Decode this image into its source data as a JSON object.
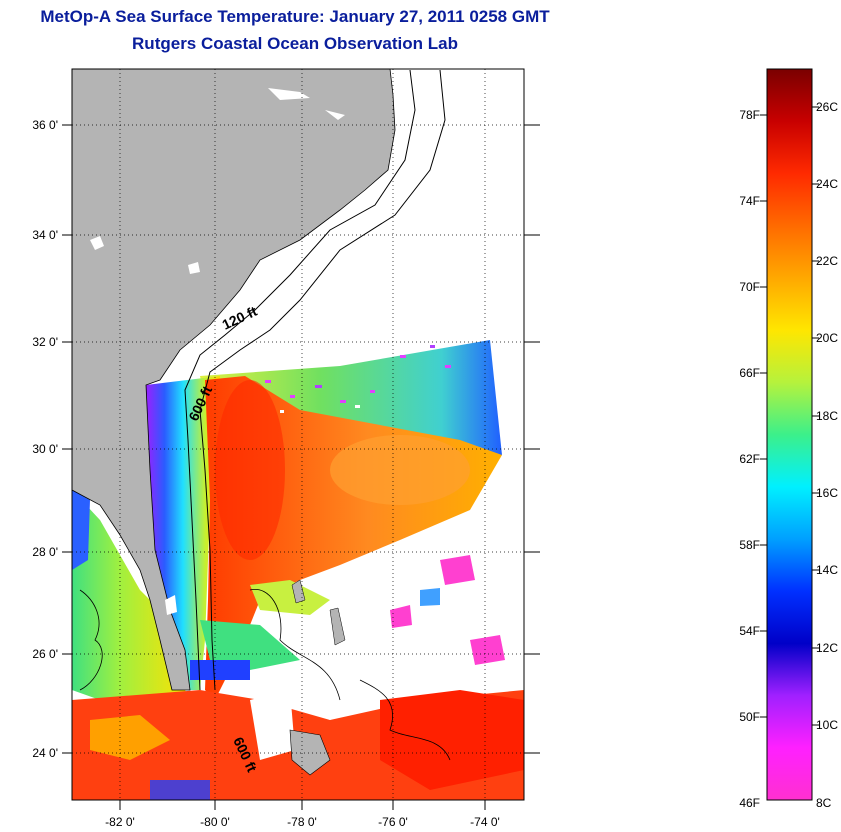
{
  "title": "MetOp-A Sea Surface Temperature:  January 27, 2011 0258 GMT",
  "subtitle": "Rutgers Coastal Ocean Observation Lab",
  "map": {
    "lat_labels": [
      "36 0'",
      "34 0'",
      "32 0'",
      "30 0'",
      "28 0'",
      "26 0'",
      "24 0'"
    ],
    "lon_labels": [
      "-82 0'",
      "-80 0'",
      "-78 0'",
      "-76 0'",
      "-74 0'"
    ],
    "contour_labels": [
      "120 ft",
      "600 ft",
      "600 ft"
    ],
    "colors": {
      "land": "#b4b4b4",
      "grid": "#000000"
    }
  },
  "colorbar": {
    "fahrenheit_labels": [
      "78F",
      "74F",
      "70F",
      "66F",
      "62F",
      "58F",
      "54F",
      "50F",
      "46F"
    ],
    "celsius_labels": [
      "26C",
      "24C",
      "22C",
      "20C",
      "18C",
      "16C",
      "14C",
      "12C",
      "10C",
      "8C"
    ],
    "gradient_colors": [
      "#7a0000",
      "#c80000",
      "#ff2a00",
      "#ff6a00",
      "#ffa800",
      "#ffe600",
      "#b6f23c",
      "#3cf08a",
      "#00f0ff",
      "#00a0ff",
      "#0030ff",
      "#0000c8",
      "#a020ff",
      "#ff20ff",
      "#ff30d0"
    ]
  }
}
